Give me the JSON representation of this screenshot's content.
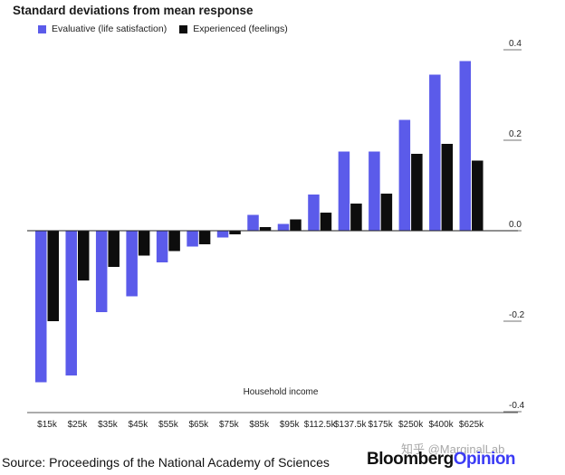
{
  "title": "Standard deviations from mean response",
  "legend": [
    {
      "label": "Evaluative (life satisfaction)",
      "color": "#5b5bea"
    },
    {
      "label": "Experienced (feelings)",
      "color": "#0d0d0d"
    }
  ],
  "source": "Source: Proceedings of the National Academy of Sciences",
  "brand": {
    "part1": "Bloomberg",
    "part2": "Opinion",
    "part2_color": "#3b3bf5"
  },
  "watermark": "知乎 @MarginalLab",
  "chart_data": {
    "type": "bar",
    "title": "Standard deviations from mean response",
    "xlabel": "Household income",
    "ylabel": "",
    "ylim": [
      -0.4,
      0.4
    ],
    "yticks": [
      0.4,
      0.2,
      0.0,
      -0.2,
      -0.4
    ],
    "ytick_labels": [
      "0.4",
      "0.2",
      "0.0",
      "-0.2",
      "-0.4"
    ],
    "categories": [
      "$15k",
      "$25k",
      "$35k",
      "$45k",
      "$55k",
      "$65k",
      "$75k",
      "$85k",
      "$95k",
      "$112.5k",
      "$137.5k",
      "$175k",
      "$250k",
      "$400k",
      "$625k"
    ],
    "series": [
      {
        "name": "Evaluative (life satisfaction)",
        "color": "#5b5bea",
        "values": [
          -0.335,
          -0.32,
          -0.18,
          -0.145,
          -0.07,
          -0.035,
          -0.015,
          0.035,
          0.015,
          0.08,
          0.175,
          0.175,
          0.245,
          0.345,
          0.375
        ]
      },
      {
        "name": "Experienced (feelings)",
        "color": "#0d0d0d",
        "values": [
          -0.2,
          -0.11,
          -0.08,
          -0.055,
          -0.045,
          -0.03,
          -0.008,
          0.008,
          0.025,
          0.04,
          0.06,
          0.082,
          0.17,
          0.192,
          0.155
        ]
      }
    ]
  }
}
